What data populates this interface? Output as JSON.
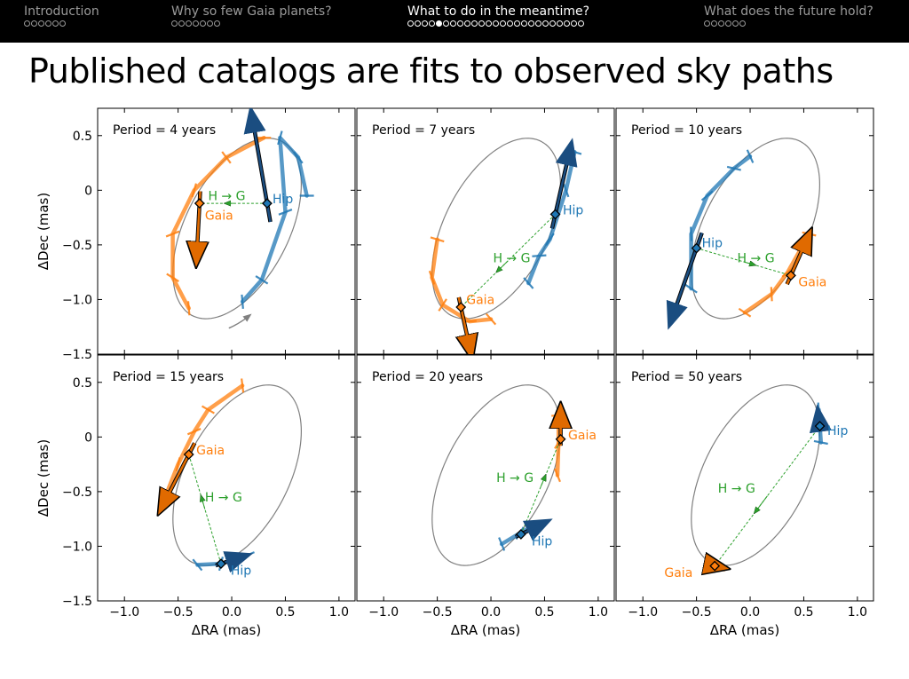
{
  "nav": {
    "sections": [
      {
        "title": "Introduction",
        "dots": 6,
        "current": -1,
        "active": false
      },
      {
        "title": "Why so few Gaia planets?",
        "dots": 7,
        "current": -1,
        "active": false
      },
      {
        "title": "What to do in the meantime?",
        "dots": 25,
        "current": 4,
        "active": true
      },
      {
        "title": "What does the future hold?",
        "dots": 6,
        "current": -1,
        "active": false
      }
    ]
  },
  "slide_title": "Published catalogs are fits to observed sky paths",
  "colors": {
    "hip": "#1f77b4",
    "hip_dark": "#1a4d80",
    "gaia": "#ff7f0e",
    "gaia_dark": "#e06a00",
    "hg": "#2ca02c",
    "orbit": "#808080"
  },
  "chart_data": {
    "type": "line",
    "xlabel": "ΔRA (mas)",
    "ylabel": "ΔDec (mas)",
    "xlim": [
      -1.25,
      1.15
    ],
    "ylim": [
      -1.5,
      0.75
    ],
    "xticks": [
      -1.0,
      -0.5,
      0.0,
      0.5,
      1.0
    ],
    "xtick_labels": [
      "−1.0",
      "−0.5",
      "0.0",
      "0.5",
      "1.0"
    ],
    "yticks": [
      0.5,
      0.0,
      -0.5,
      -1.0,
      -1.5
    ],
    "ytick_labels": [
      "0.5",
      "0",
      "−0.5",
      "−1.0",
      "−1.5"
    ],
    "labels": {
      "hip": "Hip",
      "gaia": "Gaia",
      "hg": "H → G"
    },
    "orbit": {
      "center": [
        0.05,
        -0.35
      ],
      "semi_major": 0.9,
      "semi_minor": 0.48,
      "angle_deg": 62
    },
    "panels": [
      {
        "title": "Period = 4 years",
        "hip_arc": [
          [
            0.7,
            -0.05
          ],
          [
            0.62,
            0.3
          ],
          [
            0.45,
            0.48
          ],
          [
            0.5,
            -0.2
          ],
          [
            0.28,
            -0.82
          ],
          [
            0.1,
            -1.02
          ]
        ],
        "gaia_arc": [
          [
            0.3,
            0.48
          ],
          [
            -0.05,
            0.3
          ],
          [
            -0.35,
            0.0
          ],
          [
            -0.55,
            -0.4
          ],
          [
            -0.55,
            -0.8
          ],
          [
            -0.4,
            -1.08
          ]
        ],
        "hip_pos": [
          0.33,
          -0.12
        ],
        "hip_vec": [
          -0.15,
          0.85
        ],
        "gaia_pos": [
          -0.3,
          -0.12
        ],
        "gaia_vec": [
          -0.03,
          -0.55
        ],
        "hip_label_pos": [
          0.38,
          -0.08
        ],
        "gaia_label_pos": [
          -0.25,
          -0.23
        ],
        "hg_label_pos": [
          -0.22,
          -0.05
        ],
        "orbit_arrow": true
      },
      {
        "title": "Period = 7 years",
        "hip_arc": [
          [
            0.78,
            0.35
          ],
          [
            0.7,
            0.0
          ],
          [
            0.55,
            -0.45
          ],
          [
            0.45,
            -0.6
          ],
          [
            0.35,
            -0.85
          ]
        ],
        "gaia_arc": [
          [
            -0.5,
            -0.45
          ],
          [
            -0.55,
            -0.8
          ],
          [
            -0.45,
            -1.05
          ],
          [
            -0.2,
            -1.2
          ],
          [
            0.0,
            -1.18
          ]
        ],
        "hip_pos": [
          0.6,
          -0.22
        ],
        "hip_vec": [
          0.15,
          0.65
        ],
        "gaia_pos": [
          -0.28,
          -1.07
        ],
        "gaia_vec": [
          0.1,
          -0.45
        ],
        "hip_label_pos": [
          0.67,
          -0.18
        ],
        "gaia_label_pos": [
          -0.23,
          -1.0
        ],
        "hg_label_pos": [
          0.02,
          -0.62
        ],
        "orbit_arrow": false
      },
      {
        "title": "Period = 10 years",
        "hip_arc": [
          [
            -0.55,
            -0.9
          ],
          [
            -0.55,
            -0.4
          ],
          [
            -0.4,
            -0.05
          ],
          [
            -0.15,
            0.2
          ],
          [
            0.0,
            0.31
          ]
        ],
        "gaia_arc": [
          [
            -0.05,
            -1.12
          ],
          [
            0.2,
            -0.95
          ],
          [
            0.35,
            -0.75
          ],
          [
            0.55,
            -0.4
          ]
        ],
        "hip_pos": [
          -0.5,
          -0.53
        ],
        "hip_vec": [
          -0.25,
          -0.7
        ],
        "gaia_pos": [
          0.38,
          -0.78
        ],
        "gaia_vec": [
          0.18,
          0.4
        ],
        "hip_label_pos": [
          -0.45,
          -0.48
        ],
        "gaia_label_pos": [
          0.45,
          -0.84
        ],
        "hg_label_pos": [
          -0.12,
          -0.62
        ],
        "orbit_arrow": false
      },
      {
        "title": "Period = 15 years",
        "hip_arc": [
          [
            -0.32,
            -1.17
          ],
          [
            -0.1,
            -1.16
          ],
          [
            0.15,
            -1.08
          ]
        ],
        "gaia_arc": [
          [
            -0.62,
            -0.55
          ],
          [
            -0.5,
            -0.25
          ],
          [
            -0.35,
            0.05
          ],
          [
            -0.22,
            0.25
          ],
          [
            0.1,
            0.47
          ]
        ],
        "hip_pos": [
          -0.1,
          -1.16
        ],
        "hip_vec": [
          0.25,
          0.08
        ],
        "gaia_pos": [
          -0.4,
          -0.16
        ],
        "gaia_vec": [
          -0.27,
          -0.52
        ],
        "hip_label_pos": [
          -0.01,
          -1.22
        ],
        "gaia_label_pos": [
          -0.33,
          -0.12
        ],
        "hg_label_pos": [
          -0.25,
          -0.55
        ],
        "orbit_arrow": false
      },
      {
        "title": "Period = 20 years",
        "hip_arc": [
          [
            0.1,
            -0.98
          ],
          [
            0.27,
            -0.88
          ],
          [
            0.45,
            -0.78
          ]
        ],
        "gaia_arc": [
          [
            0.62,
            -0.35
          ],
          [
            0.63,
            -0.05
          ],
          [
            0.63,
            0.2
          ]
        ],
        "hip_pos": [
          0.28,
          -0.89
        ],
        "hip_vec": [
          0.25,
          0.12
        ],
        "gaia_pos": [
          0.65,
          -0.02
        ],
        "gaia_vec": [
          0.0,
          0.3
        ],
        "hip_label_pos": [
          0.38,
          -0.95
        ],
        "gaia_label_pos": [
          0.72,
          0.02
        ],
        "hg_label_pos": [
          0.05,
          -0.37
        ],
        "orbit_arrow": false
      },
      {
        "title": "Period = 50 years",
        "hip_arc": [
          [
            0.64,
            0.25
          ],
          [
            0.65,
            0.1
          ],
          [
            0.66,
            -0.05
          ]
        ],
        "gaia_arc": [
          [
            -0.4,
            -1.16
          ],
          [
            -0.35,
            -1.19
          ],
          [
            -0.3,
            -1.21
          ]
        ],
        "hip_pos": [
          0.65,
          0.1
        ],
        "hip_vec": [
          -0.02,
          0.15
        ],
        "gaia_pos": [
          -0.33,
          -1.18
        ],
        "gaia_vec": [
          0.1,
          -0.02
        ],
        "hip_label_pos": [
          0.72,
          0.06
        ],
        "gaia_label_pos": [
          -0.8,
          -1.24
        ],
        "hg_label_pos": [
          -0.3,
          -0.47
        ],
        "orbit_arrow": false
      }
    ]
  }
}
